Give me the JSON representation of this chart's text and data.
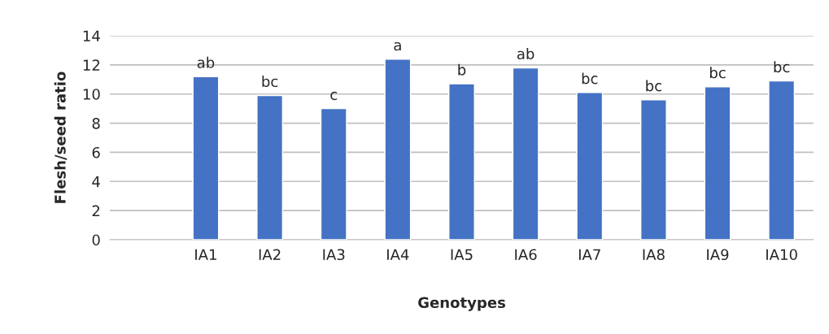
{
  "chart_data": {
    "type": "bar",
    "xlabel": "Genotypes",
    "ylabel": "Flesh/seed ratio",
    "categories": [
      null,
      "IA1",
      "IA2",
      "IA3",
      "IA4",
      "IA5",
      "IA6",
      "IA7",
      "IA8",
      "IA9",
      "IA10"
    ],
    "values": [
      null,
      11.2,
      9.9,
      9.0,
      12.4,
      10.7,
      11.8,
      10.1,
      9.6,
      10.5,
      10.9
    ],
    "value_labels": [
      null,
      "ab",
      "bc",
      "c",
      "a",
      "b",
      "ab",
      "bc",
      "bc",
      "bc",
      "bc"
    ],
    "color": "#4472c4",
    "ylim": [
      0,
      14
    ],
    "yticks": [
      0,
      2,
      4,
      6,
      8,
      10,
      12,
      14
    ],
    "grid": "y",
    "legend": false
  }
}
